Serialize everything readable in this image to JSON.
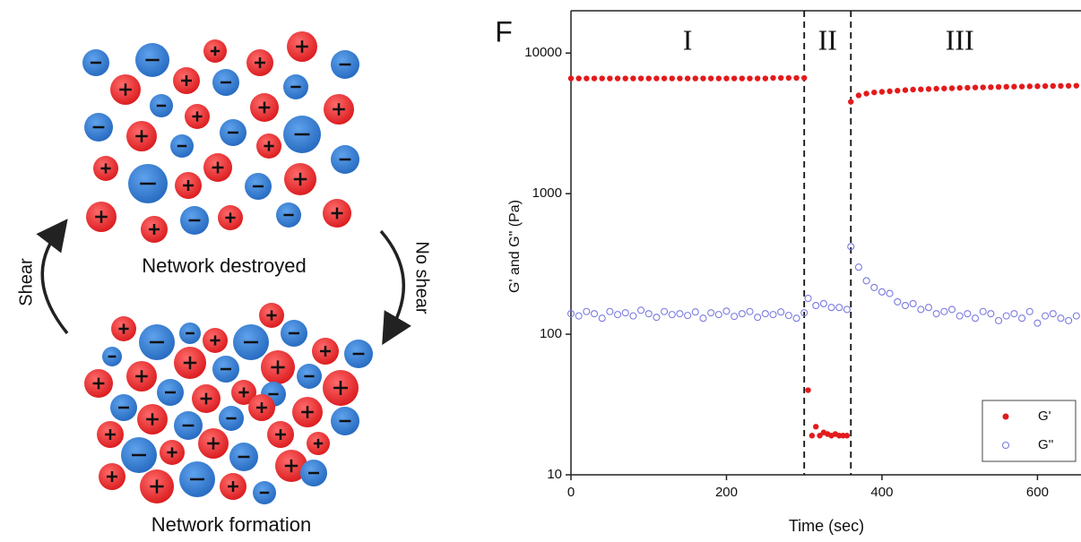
{
  "chart_data": {
    "type": "scatter",
    "panel_label": "F",
    "y_label": "G' and G\" (Pa)",
    "x_label": "Time (sec)",
    "log_y": true,
    "xlim": [
      0,
      656
    ],
    "ylim": [
      10,
      20000
    ],
    "xticks": [
      0,
      200,
      400,
      600
    ],
    "yticks": [
      10,
      100,
      1000,
      10000
    ],
    "dividers": [
      300,
      360
    ],
    "regions": [
      {
        "label": "I",
        "x": 150
      },
      {
        "label": "II",
        "x": 330
      },
      {
        "label": "III",
        "x": 500
      }
    ],
    "legend": "lower right",
    "series": [
      {
        "name": "G'",
        "color": "#e31a1c",
        "filled": true,
        "x": [
          0,
          10,
          20,
          30,
          40,
          50,
          60,
          70,
          80,
          90,
          100,
          110,
          120,
          130,
          140,
          150,
          160,
          170,
          180,
          190,
          200,
          210,
          220,
          230,
          240,
          250,
          260,
          270,
          280,
          290,
          300,
          305,
          310,
          315,
          320,
          325,
          330,
          335,
          340,
          345,
          350,
          355,
          360,
          370,
          380,
          390,
          400,
          410,
          420,
          430,
          440,
          450,
          460,
          470,
          480,
          490,
          500,
          510,
          520,
          530,
          540,
          550,
          560,
          570,
          580,
          590,
          600,
          610,
          620,
          630,
          640,
          650
        ],
        "values": [
          6600,
          6600,
          6600,
          6600,
          6600,
          6600,
          6600,
          6600,
          6600,
          6600,
          6600,
          6600,
          6600,
          6600,
          6600,
          6600,
          6600,
          6600,
          6600,
          6600,
          6600,
          6600,
          6600,
          6600,
          6600,
          6600,
          6650,
          6650,
          6650,
          6650,
          6650,
          40,
          19,
          22,
          19,
          20,
          19.5,
          19,
          19.5,
          19,
          19,
          19,
          4500,
          5000,
          5150,
          5250,
          5300,
          5350,
          5400,
          5450,
          5500,
          5520,
          5550,
          5580,
          5600,
          5620,
          5650,
          5670,
          5690,
          5700,
          5720,
          5740,
          5760,
          5770,
          5780,
          5800,
          5810,
          5820,
          5830,
          5840,
          5850,
          5860
        ]
      },
      {
        "name": "G''",
        "color": "#7b7be0",
        "filled": false,
        "x": [
          0,
          10,
          20,
          30,
          40,
          50,
          60,
          70,
          80,
          90,
          100,
          110,
          120,
          130,
          140,
          150,
          160,
          170,
          180,
          190,
          200,
          210,
          220,
          230,
          240,
          250,
          260,
          270,
          280,
          290,
          300,
          305,
          315,
          325,
          335,
          345,
          355,
          360,
          370,
          380,
          390,
          400,
          410,
          420,
          430,
          440,
          450,
          460,
          470,
          480,
          490,
          500,
          510,
          520,
          530,
          540,
          550,
          560,
          570,
          580,
          590,
          600,
          610,
          620,
          630,
          640,
          650
        ],
        "values": [
          140,
          135,
          145,
          140,
          130,
          145,
          138,
          142,
          135,
          148,
          140,
          132,
          145,
          138,
          140,
          136,
          144,
          130,
          142,
          138,
          146,
          134,
          140,
          145,
          132,
          140,
          138,
          144,
          136,
          130,
          142,
          180,
          160,
          165,
          155,
          155,
          150,
          420,
          300,
          240,
          215,
          200,
          195,
          170,
          160,
          165,
          150,
          155,
          140,
          145,
          150,
          135,
          140,
          130,
          145,
          140,
          125,
          135,
          140,
          130,
          145,
          120,
          135,
          140,
          130,
          125,
          135
        ]
      }
    ]
  },
  "diagram": {
    "top_label": "Network destroyed",
    "bottom_label": "Network formation",
    "left_arrow": "Shear",
    "right_arrow": "No shear"
  }
}
